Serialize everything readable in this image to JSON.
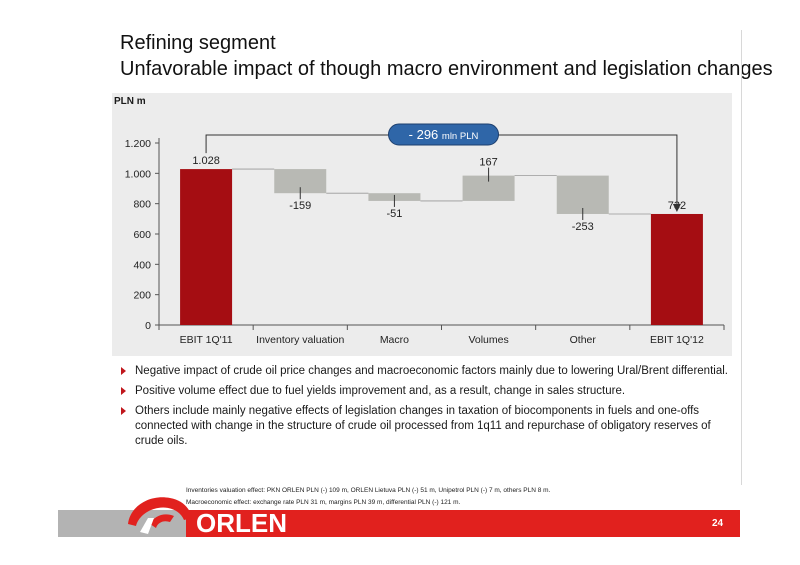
{
  "slide": {
    "title_line1": "Refining segment",
    "title_line2": "Unfavorable impact of though macro environment and legislation changes",
    "page_number": "24"
  },
  "chart_data": {
    "type": "waterfall",
    "unit_label": "PLN m",
    "categories": [
      "EBIT 1Q'11",
      "Inventory valuation",
      "Macro",
      "Volumes",
      "Other",
      "EBIT 1Q'12"
    ],
    "values": [
      1028,
      -159,
      -51,
      167,
      -253,
      732
    ],
    "value_labels": [
      "1.028",
      "-159",
      "-51",
      "167",
      "-253",
      "732"
    ],
    "bar_kinds": [
      "total",
      "delta",
      "delta",
      "delta",
      "delta",
      "total"
    ],
    "ylim": [
      0,
      1200
    ],
    "yticks": [
      0,
      200,
      400,
      600,
      800,
      1000,
      1200
    ],
    "ytick_labels": [
      "0",
      "200",
      "400",
      "600",
      "800",
      "1.000",
      "1.200"
    ],
    "callout_value": "- 296",
    "callout_unit": "mln PLN",
    "colors": {
      "total": "#a50d12",
      "delta": "#b8b9b4",
      "callout_fill": "#2f66a8",
      "panel": "#ececec",
      "arrow": "#333333"
    }
  },
  "bullets": [
    "Negative impact of crude oil price changes and macroeconomic factors mainly due to lowering Ural/Brent differential.",
    "Positive volume effect due to fuel yields improvement and, as a result, change in sales structure.",
    "Others include mainly negative effects of legislation changes in taxation of biocomponents in fuels and one-offs connected with  change in the structure of crude oil processed from 1q11 and repurchase of obligatory reserves of crude oils."
  ],
  "footnotes": [
    "Inventories valuation effect: PKN ORLEN PLN (-) 109 m, ORLEN Lietuva PLN (-) 51 m, Unipetrol PLN (-) 7 m, others PLN 8 m.",
    "Macroeconomic effect: exchange rate PLN 31 m, margins PLN 39 m, differential PLN (-) 121 m."
  ],
  "brand": {
    "name": "ORLEN",
    "red": "#e1211e",
    "grey": "#b3b3b3"
  }
}
